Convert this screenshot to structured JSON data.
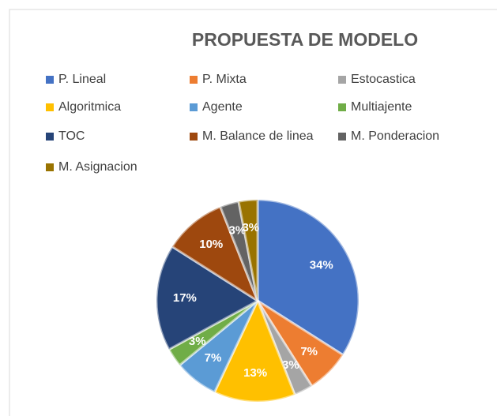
{
  "chart_data": {
    "type": "pie",
    "title": "PROPUESTA DE MODELO",
    "categories": [
      "P. Lineal",
      "P. Mixta",
      "Estocastica",
      "Algoritmica",
      "Agente",
      "Multiajente",
      "TOC",
      "M. Balance de linea",
      "M. Ponderacion",
      "M. Asignacion"
    ],
    "values": [
      34,
      7,
      3,
      13,
      7,
      3,
      17,
      10,
      3,
      3
    ],
    "value_labels": [
      "34%",
      "7%",
      "3%",
      "13%",
      "7%",
      "3%",
      "17%",
      "10%",
      "3%",
      "3%"
    ],
    "colors": [
      "#4472c4",
      "#ed7d31",
      "#a5a5a5",
      "#ffc000",
      "#5b9bd5",
      "#70ad47",
      "#264478",
      "#9e480e",
      "#636363",
      "#997300"
    ],
    "legend": "top"
  }
}
